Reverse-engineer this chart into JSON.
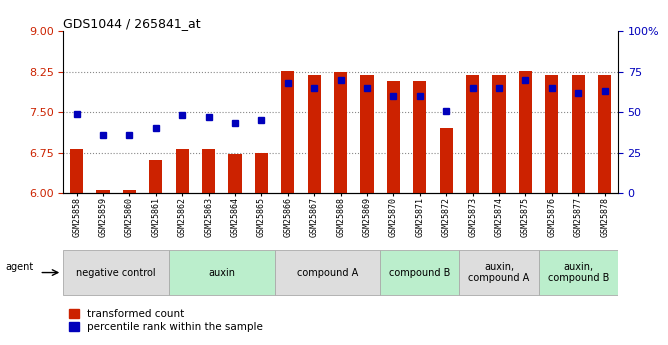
{
  "title": "GDS1044 / 265841_at",
  "samples": [
    "GSM25858",
    "GSM25859",
    "GSM25860",
    "GSM25861",
    "GSM25862",
    "GSM25863",
    "GSM25864",
    "GSM25865",
    "GSM25866",
    "GSM25867",
    "GSM25868",
    "GSM25869",
    "GSM25870",
    "GSM25871",
    "GSM25872",
    "GSM25873",
    "GSM25874",
    "GSM25875",
    "GSM25876",
    "GSM25877",
    "GSM25878"
  ],
  "bar_values": [
    6.82,
    6.05,
    6.06,
    6.62,
    6.82,
    6.82,
    6.72,
    6.75,
    8.27,
    8.19,
    8.25,
    8.19,
    8.08,
    8.08,
    7.2,
    8.18,
    8.18,
    8.27,
    8.18,
    8.18,
    8.18
  ],
  "dot_values": [
    49,
    36,
    36,
    40,
    48,
    47,
    43,
    45,
    68,
    65,
    70,
    65,
    60,
    60,
    51,
    65,
    65,
    70,
    65,
    62,
    63
  ],
  "ylim_left": [
    6,
    9
  ],
  "ylim_right": [
    0,
    100
  ],
  "yticks_left": [
    6,
    6.75,
    7.5,
    8.25,
    9
  ],
  "yticks_right": [
    0,
    25,
    50,
    75,
    100
  ],
  "ytick_labels_right": [
    "0",
    "25",
    "50",
    "75",
    "100%"
  ],
  "bar_color": "#cc2200",
  "dot_color": "#0000bb",
  "agent_groups": [
    {
      "label": "negative control",
      "start": 0,
      "end": 3,
      "color": "#dddddd"
    },
    {
      "label": "auxin",
      "start": 4,
      "end": 7,
      "color": "#bbeecc"
    },
    {
      "label": "compound A",
      "start": 8,
      "end": 11,
      "color": "#dddddd"
    },
    {
      "label": "compound B",
      "start": 12,
      "end": 14,
      "color": "#bbeecc"
    },
    {
      "label": "auxin,\ncompound A",
      "start": 15,
      "end": 17,
      "color": "#dddddd"
    },
    {
      "label": "auxin,\ncompound B",
      "start": 18,
      "end": 20,
      "color": "#bbeecc"
    }
  ],
  "grid_yticks": [
    6.75,
    7.5,
    8.25
  ],
  "bar_width": 0.5,
  "legend_labels": [
    "transformed count",
    "percentile rank within the sample"
  ]
}
